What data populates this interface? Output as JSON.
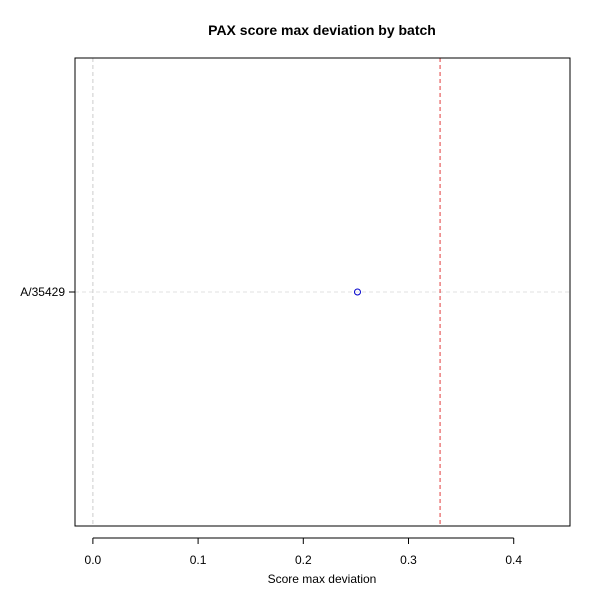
{
  "chart_data": {
    "type": "scatter",
    "title": "PAX score max deviation by batch",
    "xlabel": "Score max deviation",
    "ylabel": "",
    "xlim": [
      -0.017,
      0.4535
    ],
    "x_ticks": [
      0.0,
      0.1,
      0.2,
      0.3,
      0.4
    ],
    "x_tick_labels": [
      "0.0",
      "0.1",
      "0.2",
      "0.3",
      "0.4"
    ],
    "categories": [
      "A/35429"
    ],
    "series": [
      {
        "values": [
          0.2515
        ],
        "marker": "open-circle",
        "color": "#0000cc"
      }
    ],
    "reference_lines": [
      {
        "x": 0.0,
        "color": "#cccccc",
        "style": "dashed"
      },
      {
        "x": 0.33,
        "color": "#e03c3c",
        "style": "dashed"
      }
    ],
    "grid": true,
    "grid_color": "#e0e0e0"
  }
}
